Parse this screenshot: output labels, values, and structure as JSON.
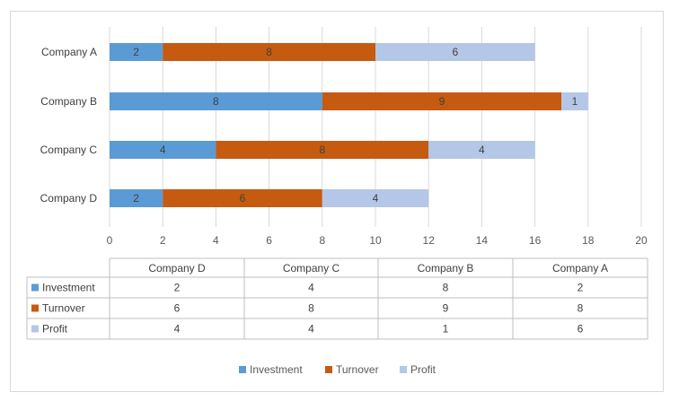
{
  "chart_data": {
    "type": "bar",
    "orientation": "horizontal",
    "stacked": true,
    "categories": [
      "Company A",
      "Company B",
      "Company C",
      "Company D"
    ],
    "series": [
      {
        "name": "Investment",
        "color": "#5b9bd5",
        "values": [
          2,
          8,
          4,
          2
        ]
      },
      {
        "name": "Turnover",
        "color": "#c55a11",
        "values": [
          8,
          9,
          8,
          6
        ]
      },
      {
        "name": "Profit",
        "color": "#b4c7e7",
        "values": [
          6,
          1,
          4,
          4
        ]
      }
    ],
    "xlim": [
      0,
      20
    ],
    "xticks": [
      "0",
      "2",
      "4",
      "6",
      "8",
      "10",
      "12",
      "14",
      "16",
      "18",
      "20"
    ],
    "grid": "vertical",
    "legend_position": "bottom",
    "data_table": {
      "columns": [
        "Company D",
        "Company C",
        "Company B",
        "Company A"
      ]
    }
  }
}
